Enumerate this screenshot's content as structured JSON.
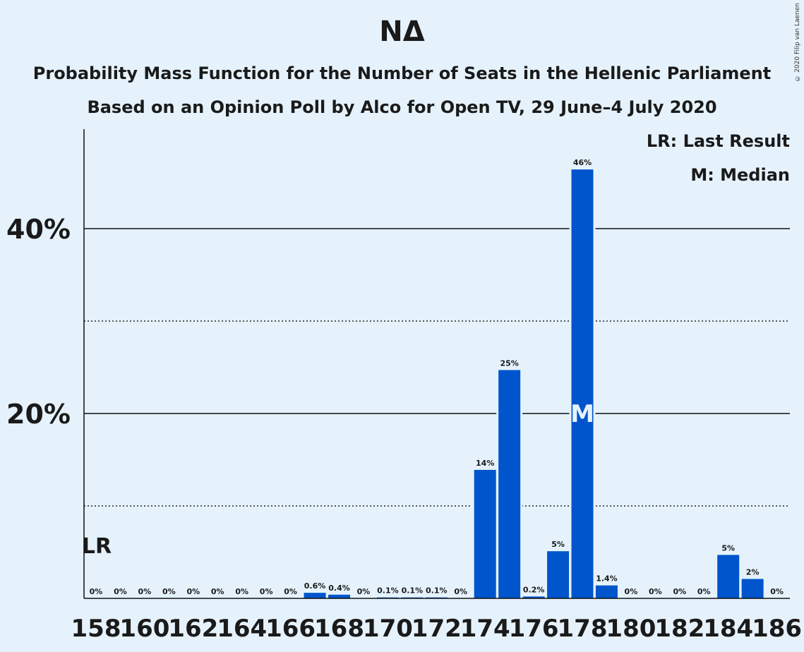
{
  "title": "ΝΔ",
  "subtitle1": "Probability Mass Function for the Number of Seats in the Hellenic Parliament",
  "subtitle2": "Based on an Opinion Poll by Alco for Open TV, 29 June–4 July 2020",
  "copyright": "© 2020 Filip van Laenen",
  "legend": {
    "last_result": "LR: Last Result",
    "median": "M: Median"
  },
  "colors": {
    "bar": "#0055cc",
    "background": "#e5f2fc",
    "median_label": "#e5f2fc"
  },
  "chart_data": {
    "type": "bar",
    "seats": [
      158,
      159,
      160,
      161,
      162,
      163,
      164,
      165,
      166,
      167,
      168,
      169,
      170,
      171,
      172,
      173,
      174,
      175,
      176,
      177,
      178,
      179,
      180,
      181,
      182,
      183,
      184,
      185,
      186
    ],
    "values": [
      0,
      0,
      0,
      0,
      0,
      0,
      0,
      0,
      0,
      0.6,
      0.4,
      0,
      0.1,
      0.1,
      0.1,
      0,
      13.9,
      24.7,
      0.2,
      5.1,
      46.4,
      1.4,
      0,
      0,
      0,
      0,
      4.7,
      2.1,
      0
    ],
    "labels": [
      "0%",
      "0%",
      "0%",
      "0%",
      "0%",
      "0%",
      "0%",
      "0%",
      "0%",
      "0.6%",
      "0.4%",
      "0%",
      "0.1%",
      "0.1%",
      "0.1%",
      "0%",
      "14%",
      "25%",
      "0.2%",
      "5%",
      "46%",
      "1.4%",
      "0%",
      "0%",
      "0%",
      "0%",
      "5%",
      "2%",
      "0%"
    ],
    "x_tick_labels": [
      "158",
      "160",
      "162",
      "164",
      "166",
      "168",
      "170",
      "172",
      "174",
      "176",
      "178",
      "180",
      "182",
      "184",
      "186"
    ],
    "y_tick_labels": [
      "20%",
      "40%"
    ],
    "y_major_ticks": [
      20,
      40
    ],
    "y_minor_ticks": [
      10,
      30
    ],
    "ylim": [
      0,
      50.5
    ],
    "last_result_seat": 158,
    "last_result_label": "LR",
    "median_seat": 178,
    "median_label": "M"
  }
}
